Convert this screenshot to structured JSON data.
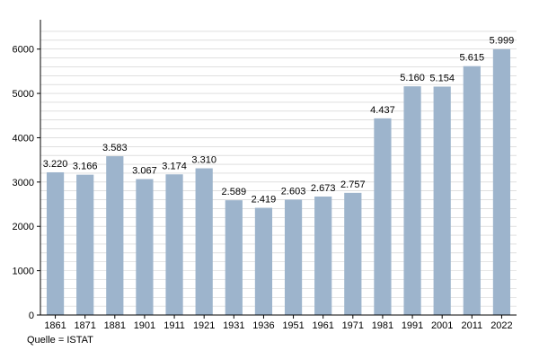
{
  "chart_data": {
    "type": "bar",
    "title": "",
    "xlabel": "",
    "ylabel": "",
    "categories": [
      "1861",
      "1871",
      "1881",
      "1901",
      "1911",
      "1921",
      "1931",
      "1936",
      "1951",
      "1961",
      "1971",
      "1981",
      "1991",
      "2001",
      "2011",
      "2022"
    ],
    "values": [
      3220,
      3166,
      3583,
      3067,
      3174,
      3310,
      2589,
      2419,
      2603,
      2673,
      2757,
      4437,
      5160,
      5154,
      5615,
      5999
    ],
    "data_labels": [
      "3.220",
      "3.166",
      "3.583",
      "3.067",
      "3.174",
      "3.310",
      "2.589",
      "2.419",
      "2.603",
      "2.673",
      "2.757",
      "4.437",
      "5.160",
      "5.154",
      "5.615",
      "5.999"
    ],
    "ylim": [
      0,
      6500
    ],
    "yticks": [
      0,
      1000,
      2000,
      3000,
      4000,
      5000,
      6000
    ],
    "minor_gridlines": 200,
    "grid": true,
    "bar_color": "#9db4cc",
    "grid_color": "#cccccc"
  },
  "source_text": "Quelle = ISTAT"
}
